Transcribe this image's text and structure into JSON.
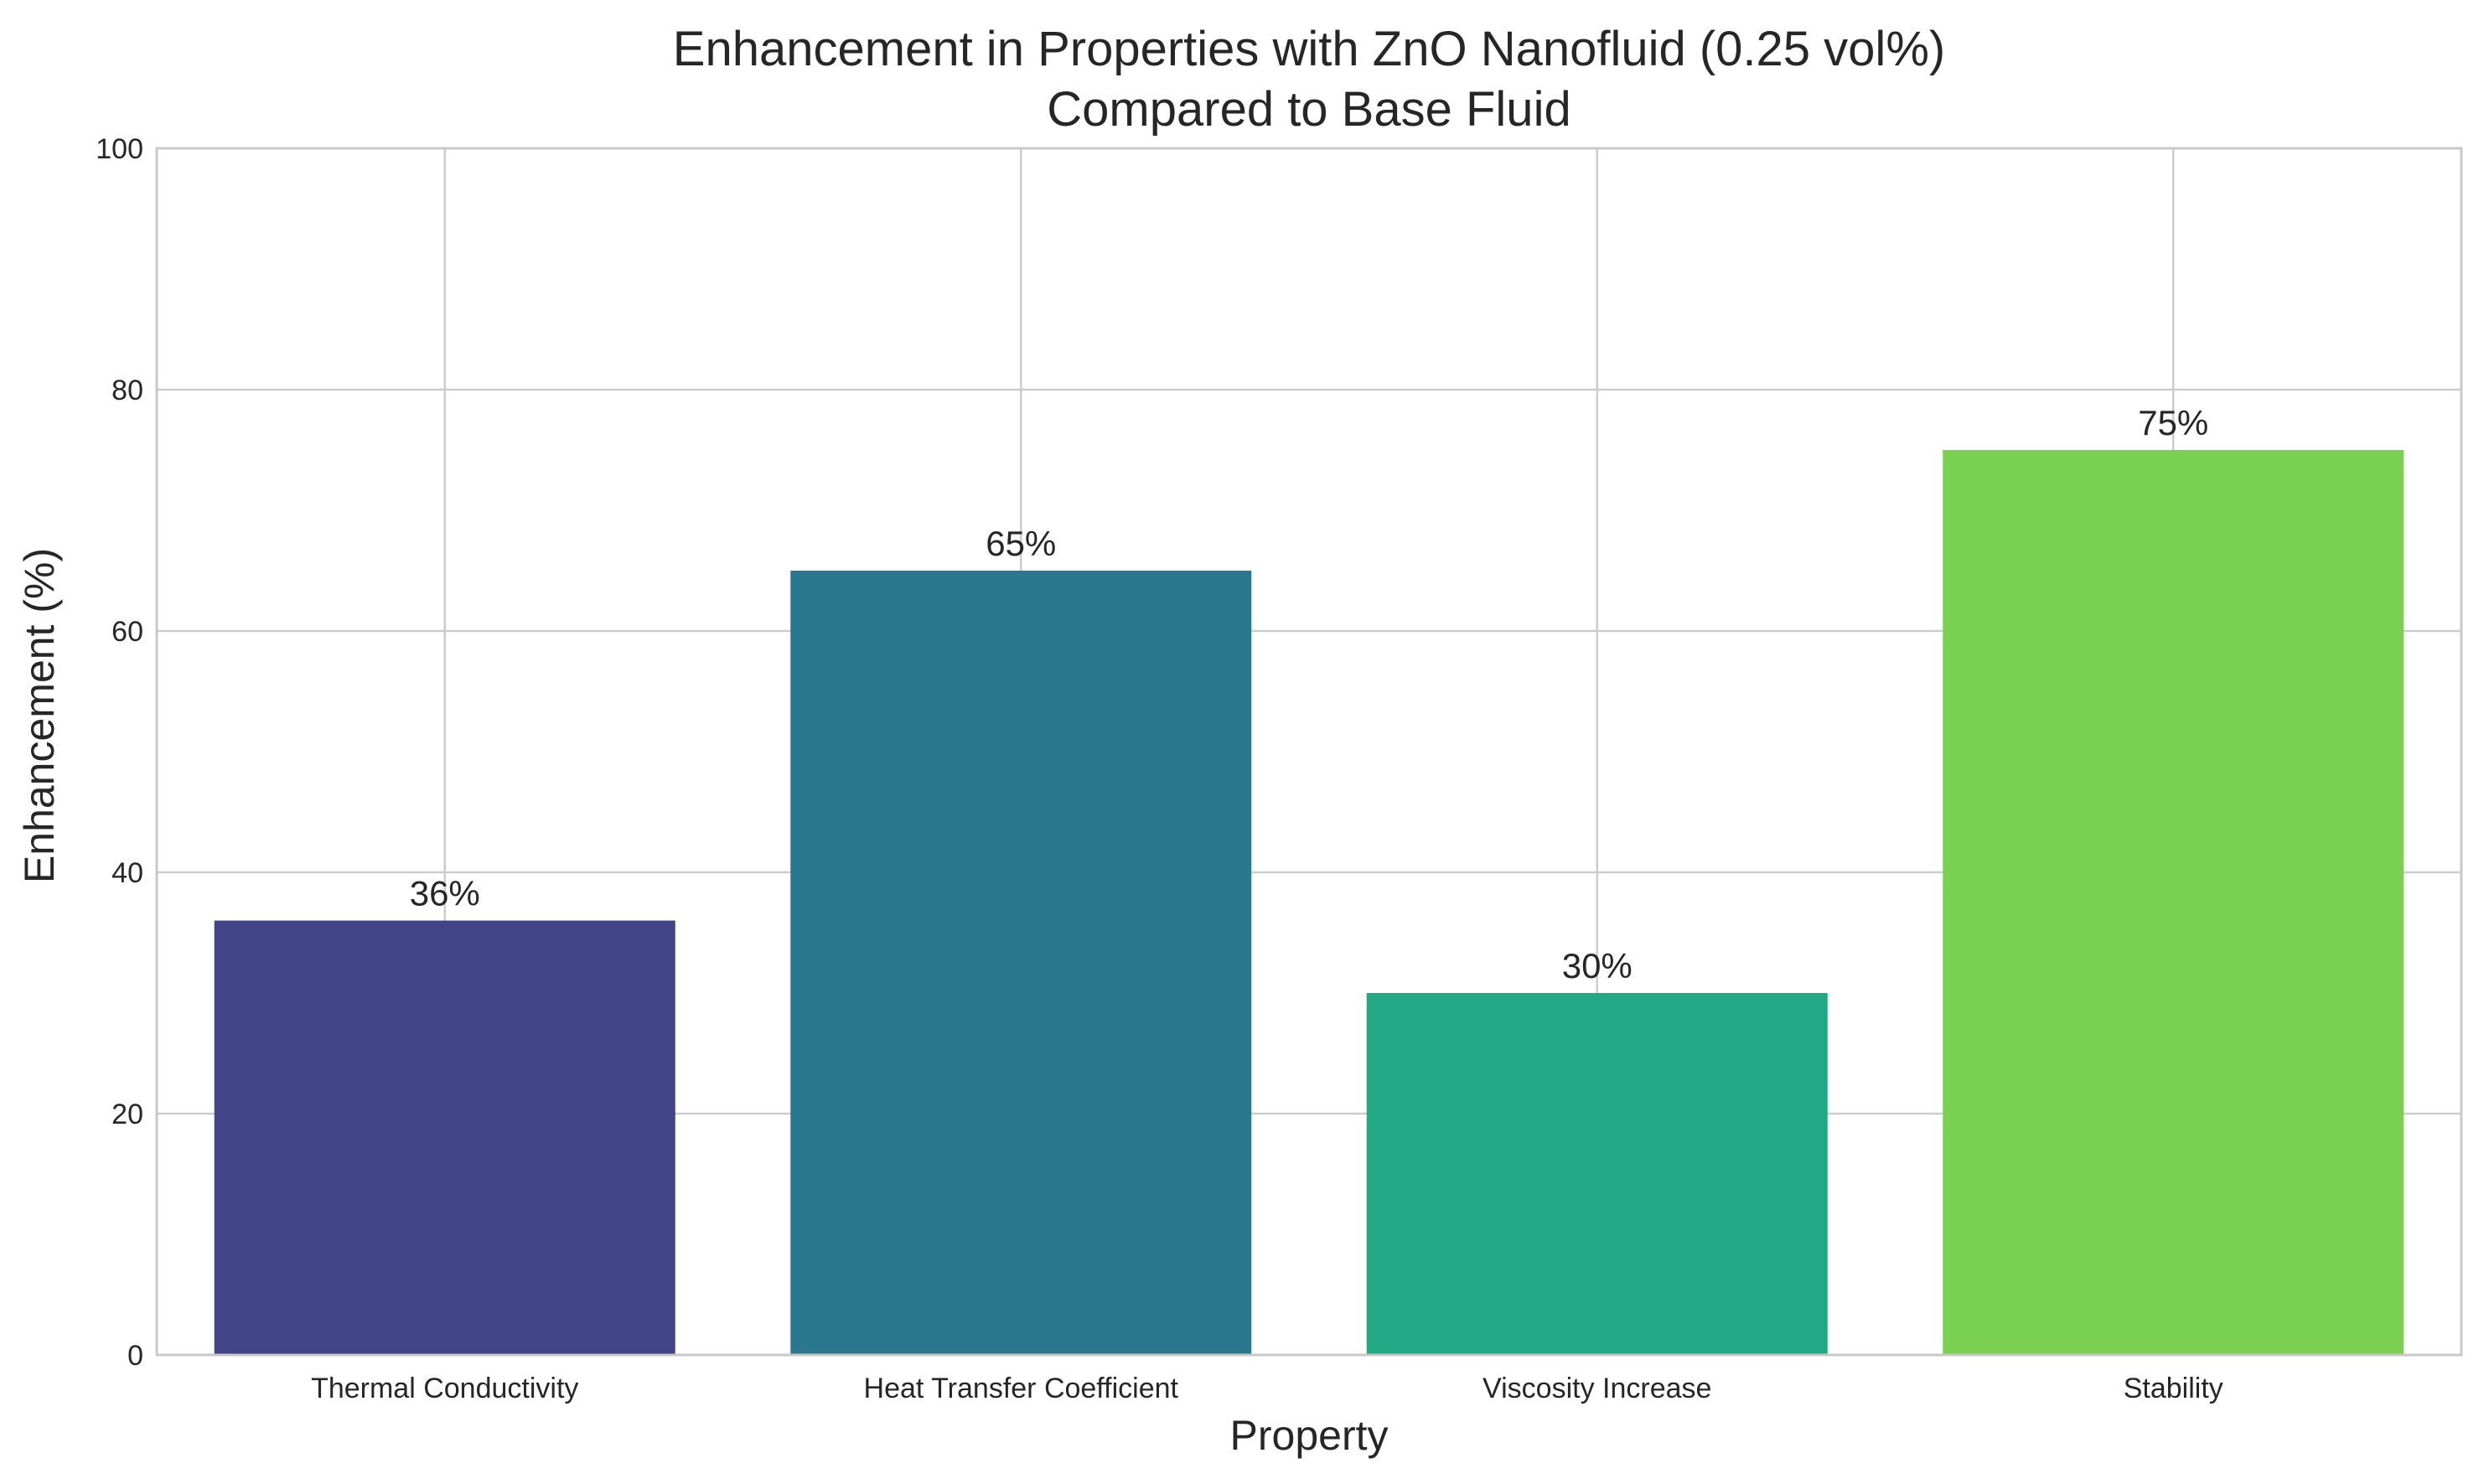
{
  "chart_data": {
    "type": "bar",
    "title_lines": [
      "Enhancement in Properties with ZnO Nanofluid (0.25 vol%)",
      "Compared to Base Fluid"
    ],
    "xlabel": "Property",
    "ylabel": "Enhancement (%)",
    "categories": [
      "Thermal Conductivity",
      "Heat Transfer Coefficient",
      "Viscosity Increase",
      "Stability"
    ],
    "values": [
      36,
      65,
      30,
      75
    ],
    "data_labels": [
      "36%",
      "65%",
      "30%",
      "75%"
    ],
    "colors": [
      "#414487",
      "#2a788e",
      "#22a884",
      "#7ad151"
    ],
    "ylim": [
      0,
      100
    ],
    "yticks": [
      0,
      20,
      40,
      60,
      80,
      100
    ],
    "grid": true,
    "legend": false
  }
}
